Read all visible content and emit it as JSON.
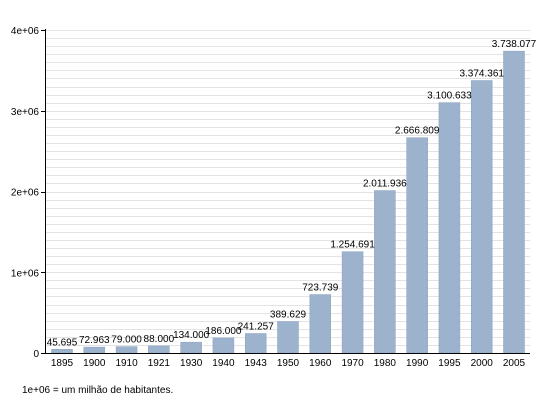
{
  "chart_data": {
    "type": "bar",
    "categories": [
      "1895",
      "1900",
      "1910",
      "1921",
      "1930",
      "1940",
      "1943",
      "1950",
      "1960",
      "1970",
      "1980",
      "1990",
      "1995",
      "2000",
      "2005"
    ],
    "values": [
      45695,
      72963,
      79000,
      88000,
      134000,
      186000,
      241257,
      389629,
      723739,
      1254691,
      2011936,
      2666809,
      3100633,
      3374361,
      3738077
    ],
    "value_labels": [
      "45.695",
      "72.963",
      "79.000",
      "88.000",
      "134.000",
      "186.000",
      "241.257",
      "389.629",
      "723.739",
      "1.254.691",
      "2.011.936",
      "2.666.809",
      "3.100.633",
      "3.374.361",
      "3.738.077"
    ],
    "y_ticks": [
      0,
      1000000,
      2000000,
      3000000,
      4000000
    ],
    "y_tick_labels": [
      "0",
      "1e+06",
      "2e+06",
      "3e+06",
      "4e+06"
    ],
    "ylim": [
      0,
      4000000
    ],
    "grid": true,
    "title": "",
    "xlabel": "",
    "ylabel": "",
    "colors": {
      "bar": "#9db3cd",
      "bar_edge": "#8aa2bf",
      "grid": "#c8c8c8",
      "axis": "#000000"
    }
  },
  "footnote": "1e+06 = um milhão de habitantes."
}
